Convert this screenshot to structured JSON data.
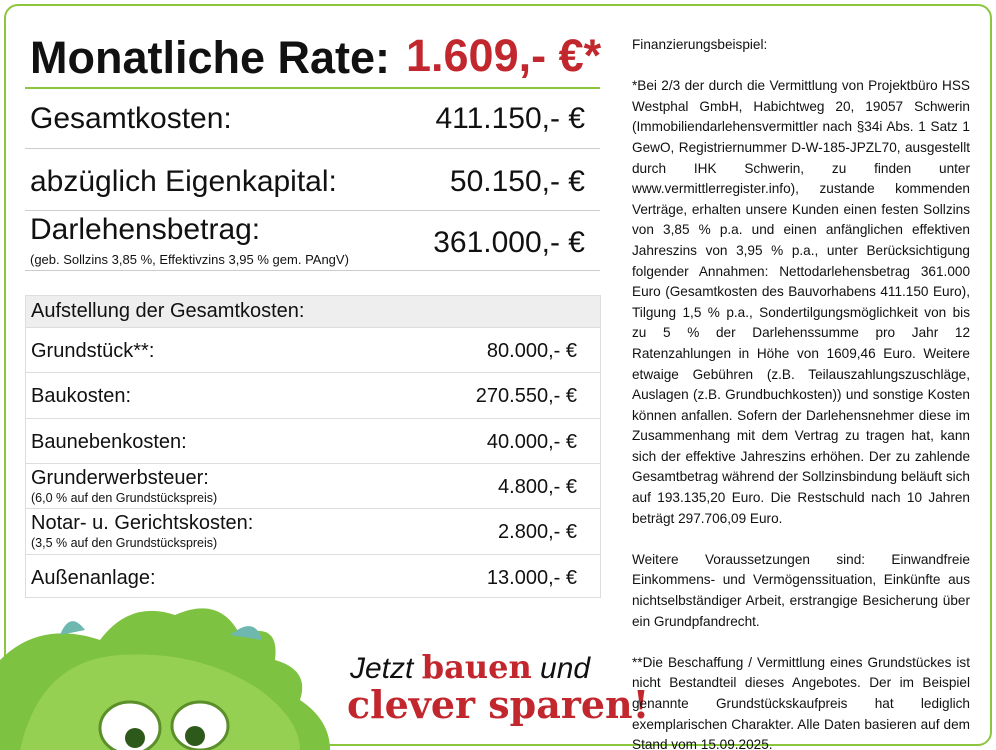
{
  "headline": {
    "label": "Monatliche Rate:",
    "value": "1.609,- €*"
  },
  "summary": [
    {
      "label": "Gesamtkosten:",
      "value": "411.150,- €"
    },
    {
      "label": "abzüglich Eigenkapital:",
      "value": "50.150,- €"
    },
    {
      "label": "Darlehensbetrag:",
      "note": "(geb. Sollzins 3,85 %, Effektivzins 3,95 % gem. PAngV)",
      "value": "361.000,- €"
    }
  ],
  "table": {
    "title": "Aufstellung der Gesamtkosten:",
    "rows": [
      {
        "label": "Grundstück**:",
        "value": "80.000,- €"
      },
      {
        "label": "Baukosten:",
        "value": "270.550,- €"
      },
      {
        "label": "Baunebenkosten:",
        "value": "40.000,- €"
      },
      {
        "label": "Grunderwerbsteuer:",
        "note": "(6,0 % auf den Grundstückspreis)",
        "value": "4.800,- €"
      },
      {
        "label": "Notar- u. Gerichtskosten:",
        "note": "(3,5 % auf den Grundstückspreis)",
        "value": "2.800,- €"
      },
      {
        "label": "Außenanlage:",
        "value": "13.000,- €"
      }
    ]
  },
  "slogan": {
    "line1_a": "Jetzt",
    "line1_b": "bauen",
    "line1_c": "und",
    "line2": "clever sparen!"
  },
  "disclaimer": {
    "title": "Finanzierungsbeispiel:",
    "paragraphs": [
      "*Bei 2/3 der durch die Vermittlung von Projektbüro HSS Westphal GmbH, Habichtweg 20, 19057 Schwerin (Immobiliendarlehensvermittler nach §34i Abs. 1 Satz 1 GewO, Registriernummer D-W-185-JPZL70, ausgestellt durch IHK Schwerin, zu finden unter www.vermittlerregister.info), zustande kommenden Verträge, erhalten unsere Kunden einen festen Sollzins von 3,85 % p.a. und einen anfänglichen effektiven Jahreszins von 3,95 % p.a., unter Berücksichtigung folgender Annahmen: Nettodarlehensbetrag 361.000 Euro (Gesamtkosten des Bauvorhabens 411.150 Euro), Tilgung 1,5 % p.a., Sondertilgungsmöglichkeit von bis zu 5 % der Darlehenssumme pro Jahr 12 Ratenzahlungen in Höhe von 1609,46 Euro. Weitere etwaige Gebühren (z.B. Teilauszahlungszuschläge, Auslagen (z.B. Grundbuchkosten)) und sonstige Kosten können anfallen. Sofern der Darlehensnehmer diese im Zusammenhang mit dem Vertrag zu tragen hat, kann sich der effektive Jahreszins erhöhen. Der zu zahlende Gesamtbetrag während der Sollzinsbindung beläuft sich auf 193.135,20 Euro. Die Restschuld nach 10 Jahren beträgt 297.706,09 Euro.",
      "Weitere Voraussetzungen sind: Einwandfreie Einkommens- und Vermögenssituation, Einkünfte aus nichtselbständiger Arbeit, erstrangige Besicherung über ein Grundpfandrecht.",
      "**Die Beschaffung / Vermittlung eines Grundstückes ist nicht Bestandteil dieses Angebotes. Der im Beispiel genannte Grundstückskaufpreis hat lediglich exemplarischen Charakter. Alle Daten basieren auf dem Stand vom 15.09.2025."
    ]
  }
}
